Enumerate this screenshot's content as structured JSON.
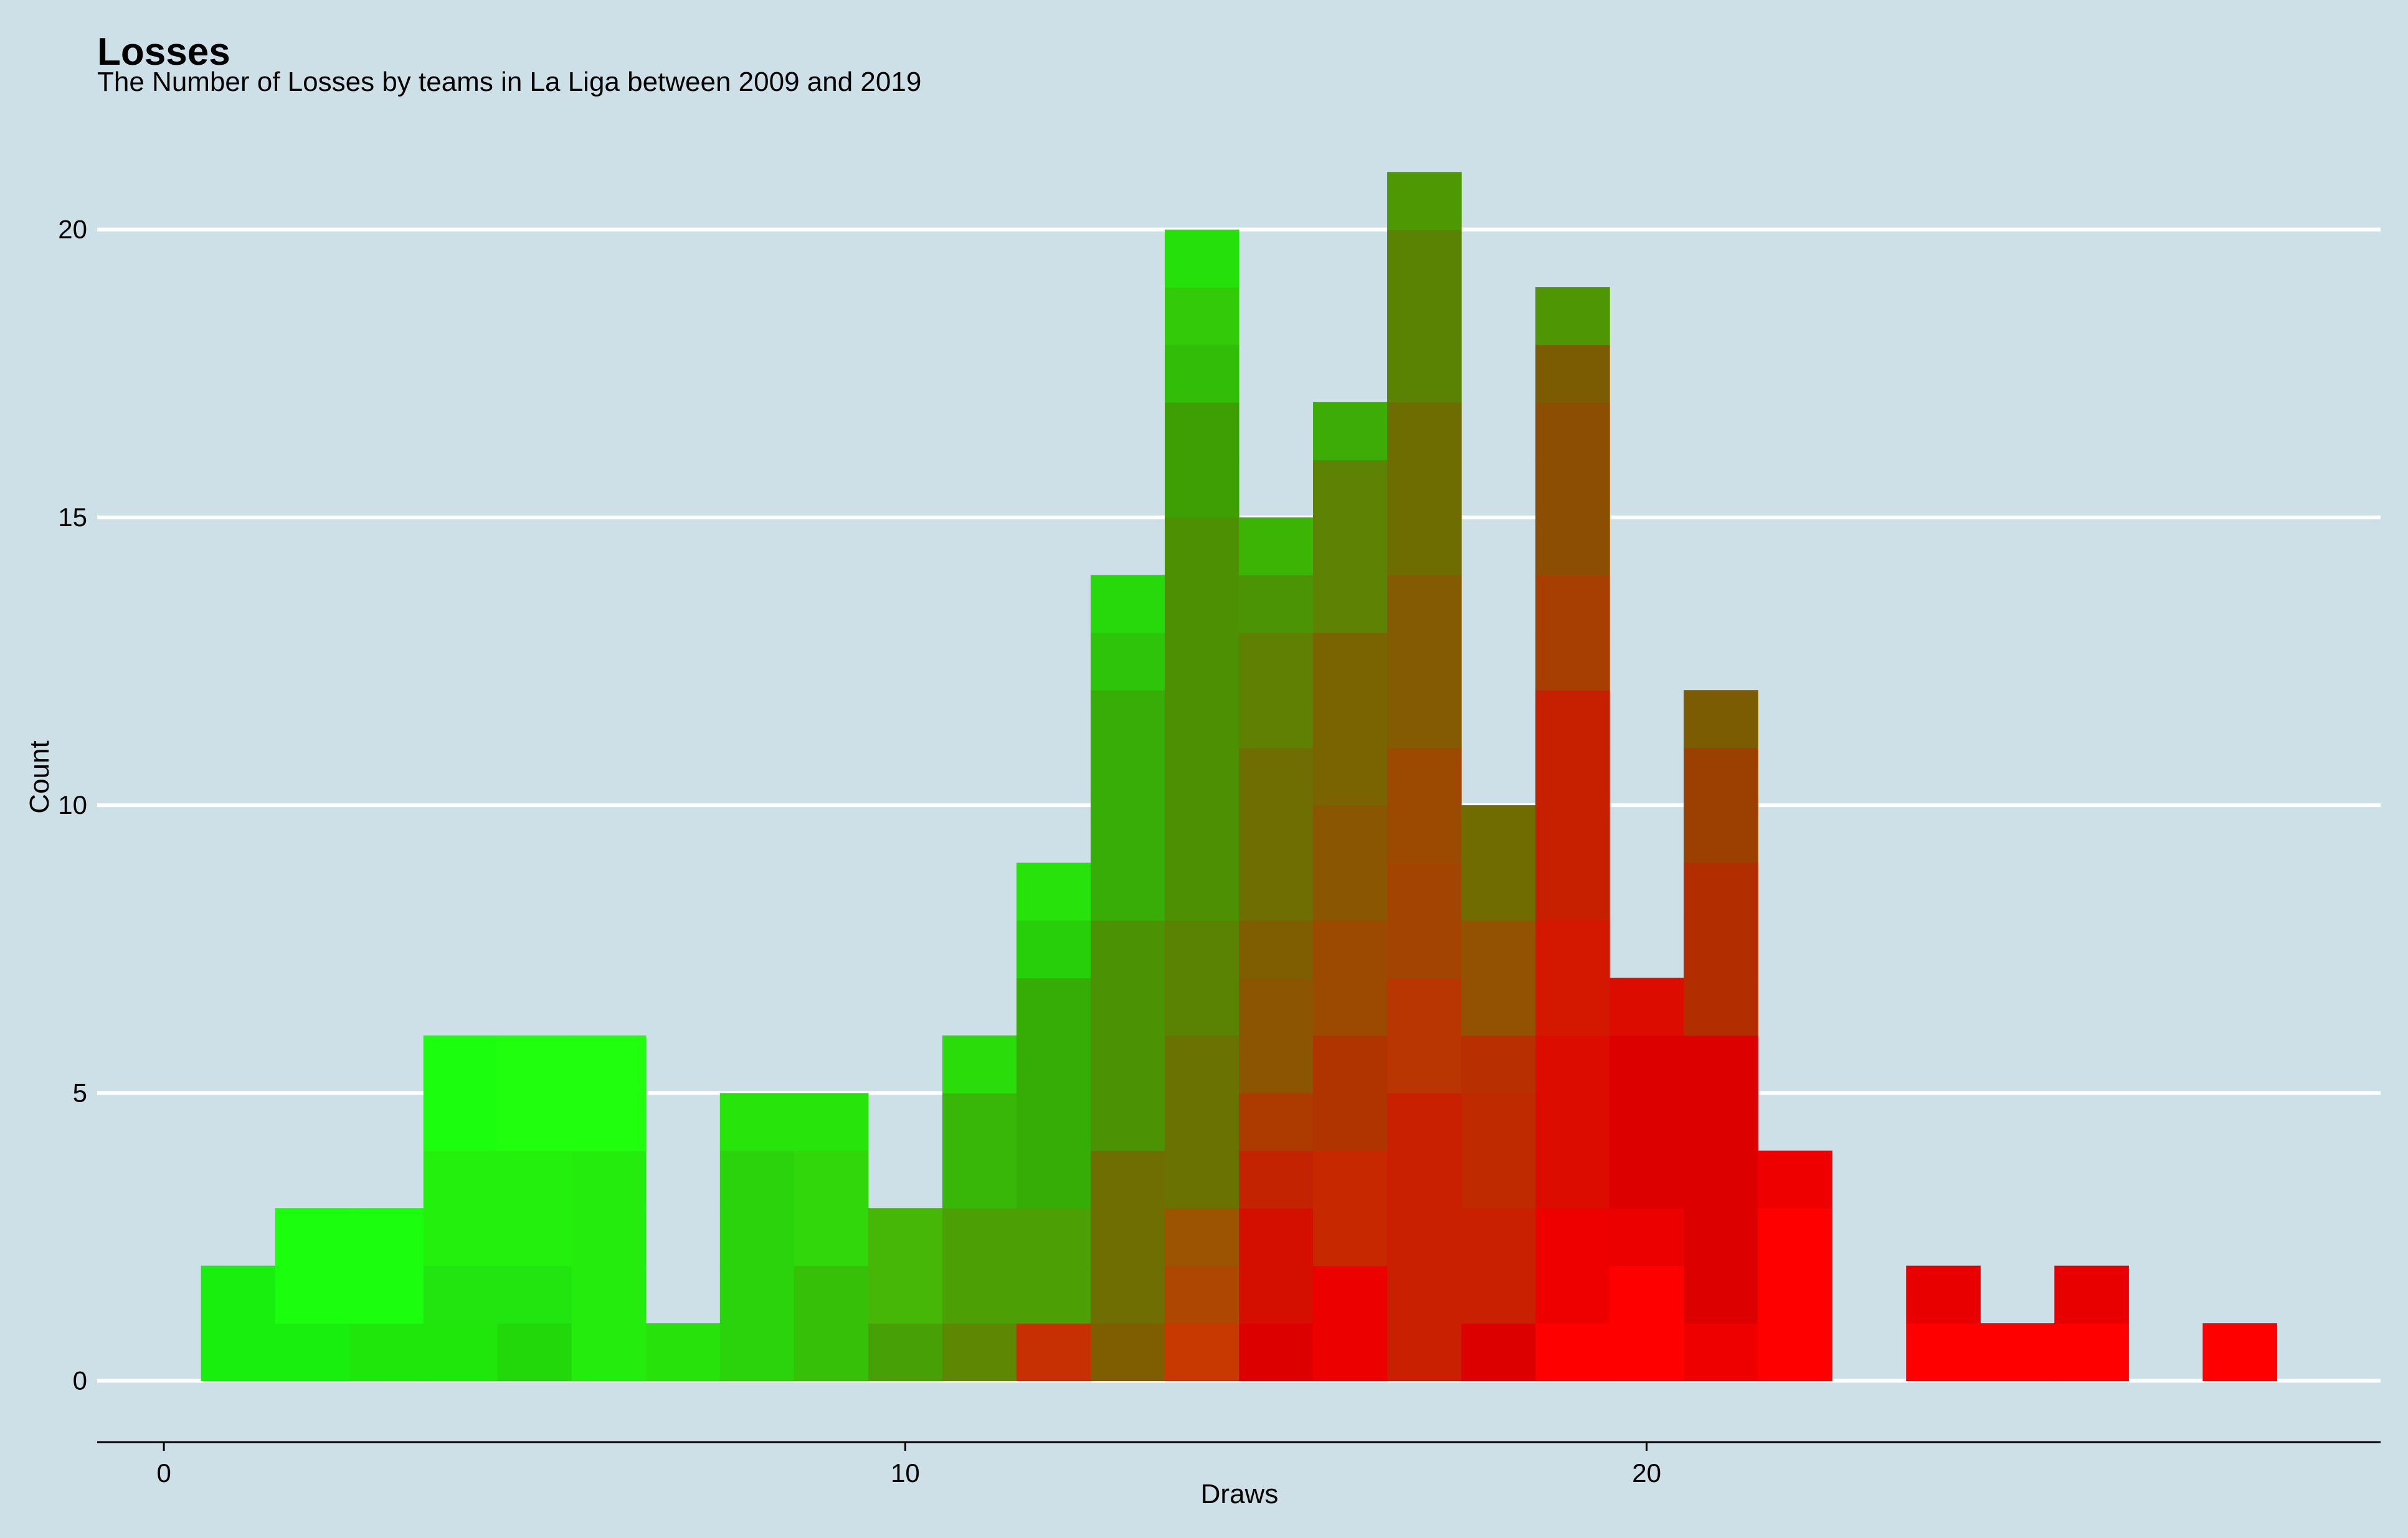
{
  "chart_data": {
    "type": "bar",
    "title": "Losses",
    "subtitle": "The Number of Losses by teams in La Liga between 2009 and 2019",
    "xlabel": "Draws",
    "ylabel": "Count",
    "xlim": [
      -0.9,
      29.9
    ],
    "ylim": [
      -1,
      21.5
    ],
    "xticks": [
      0,
      10,
      20
    ],
    "yticks": [
      0,
      5,
      10,
      15,
      20
    ],
    "grid": "horizontal major lines only",
    "legend": "none",
    "colors": {
      "background": "#cde0e7",
      "gridline": "#ffffff",
      "axis_line": "#000000",
      "low_losses": "#19ff0e",
      "high_losses": "#ff0000"
    },
    "x": [
      1,
      2,
      3,
      4,
      5,
      6,
      7,
      8,
      9,
      10,
      11,
      12,
      13,
      14,
      15,
      16,
      17,
      18,
      19,
      20,
      21,
      22,
      24,
      25,
      26,
      28
    ],
    "values": [
      2,
      3,
      3,
      6,
      6,
      6,
      1,
      5,
      5,
      3,
      6,
      9,
      14,
      20,
      15,
      17,
      21,
      10,
      19,
      7,
      12,
      4,
      2,
      1,
      2,
      1
    ],
    "stack_colors": [
      [
        "#19ef0e",
        "#19ef0e"
      ],
      [
        "#19ef0e",
        "#1bff0e",
        "#1bff0e"
      ],
      [
        "#1fe70c",
        "#1bff0e",
        "#1bff0e"
      ],
      [
        "#1fe70c",
        "#22e40e",
        "#24f00e",
        "#24f00e",
        "#1bff0e",
        "#1bff0e"
      ],
      [
        "#22d80b",
        "#22e40e",
        "#24f00e",
        "#24f00e",
        "#1fff0e",
        "#1fff0e"
      ],
      [
        "#24ec0d",
        "#24ec0d",
        "#24ec0d",
        "#24ec0d",
        "#1fff0e",
        "#1fff0e"
      ],
      [
        "#27e20b"
      ],
      [
        "#2ad30b",
        "#2ad30b",
        "#2ad30b",
        "#2ad30b",
        "#27e40b"
      ],
      [
        "#36c108",
        "#36c108",
        "#32d70b",
        "#32d70b",
        "#27e40b"
      ],
      [
        "#46a006",
        "#46b707",
        "#46b707"
      ],
      [
        "#5e8704",
        "#4d9f06",
        "#4d9f06",
        "#38b708",
        "#38b708",
        "#2bdc0b"
      ],
      [
        "#c63002",
        "#4d9f06",
        "#4d9f06",
        "#36ad07",
        "#36ad07",
        "#36ad07",
        "#36ad07",
        "#27cf0b",
        "#27e20b"
      ],
      [
        "#7f5e02",
        "#6e6e03",
        "#6e6e03",
        "#6e6e03",
        "#4c9205",
        "#4c9205",
        "#4c9205",
        "#4c9205",
        "#38ac07",
        "#38ac07",
        "#38ac07",
        "#38ac07",
        "#2dc40a",
        "#27d80b"
      ],
      [
        "#c83902",
        "#ad4702",
        "#9c5402",
        "#6a7302",
        "#6a7302",
        "#6a7302",
        "#5a8303",
        "#5a8303",
        "#4e9004",
        "#4e9004",
        "#4e9004",
        "#4e9004",
        "#4e9004",
        "#4e9004",
        "#4e9004",
        "#3e9f05",
        "#3e9f05",
        "#32be08",
        "#32ca09",
        "#25e00a"
      ],
      [
        "#dc0000",
        "#d40f00",
        "#d40f00",
        "#c32300",
        "#ad3b00",
        "#8b5502",
        "#8b5502",
        "#7f5e02",
        "#6e6e03",
        "#6e6e03",
        "#6e6e03",
        "#5f8003",
        "#5f8003",
        "#4b9405",
        "#3cb406"
      ],
      [
        "#ec0000",
        "#ec0000",
        "#c82800",
        "#c82800",
        "#b03400",
        "#b03400",
        "#9c4a02",
        "#9c4a02",
        "#8b5602",
        "#8b5602",
        "#7a6402",
        "#7a6402",
        "#7a6402",
        "#5e8204",
        "#5e8204",
        "#5e8204",
        "#3eac06"
      ],
      [
        "#c82000",
        "#c82000",
        "#c82000",
        "#c82000",
        "#c82000",
        "#b93502",
        "#b93502",
        "#a34402",
        "#a34402",
        "#9c4902",
        "#9c4902",
        "#845b02",
        "#845b02",
        "#845b02",
        "#6d6d02",
        "#6d6d02",
        "#6d6d02",
        "#5a8303",
        "#5a8303",
        "#5a8303",
        "#4e9804"
      ],
      [
        "#dc0000",
        "#c82000",
        "#c82000",
        "#c02a00",
        "#c02a00",
        "#b83002",
        "#935202",
        "#935202",
        "#716c02",
        "#716c02"
      ],
      [
        "#ff0000",
        "#ee0000",
        "#ee0000",
        "#dc0c00",
        "#dc0c00",
        "#dc0c00",
        "#d41800",
        "#d41800",
        "#c62000",
        "#c62000",
        "#c62000",
        "#c62000",
        "#a73e02",
        "#a73e02",
        "#8c4e02",
        "#8c4e02",
        "#8c4e02",
        "#7b5c02",
        "#4e9604"
      ],
      [
        "#ff0000",
        "#ff0000",
        "#ec0000",
        "#dc0000",
        "#dc0000",
        "#dc0000",
        "#dc0c00"
      ],
      [
        "#ee0000",
        "#dc0000",
        "#dc0000",
        "#dc0000",
        "#dc0000",
        "#dc0000",
        "#b22e00",
        "#b22e00",
        "#b22e00",
        "#9c4002",
        "#9c4002",
        "#7b5c02"
      ],
      [
        "#ff0000",
        "#ff0000",
        "#ff0000",
        "#ee0000"
      ],
      [
        "#ff0000",
        "#e80000"
      ],
      [
        "#ff0000"
      ],
      [
        "#ff0000",
        "#e80000"
      ],
      [
        "#ff0000"
      ]
    ]
  }
}
